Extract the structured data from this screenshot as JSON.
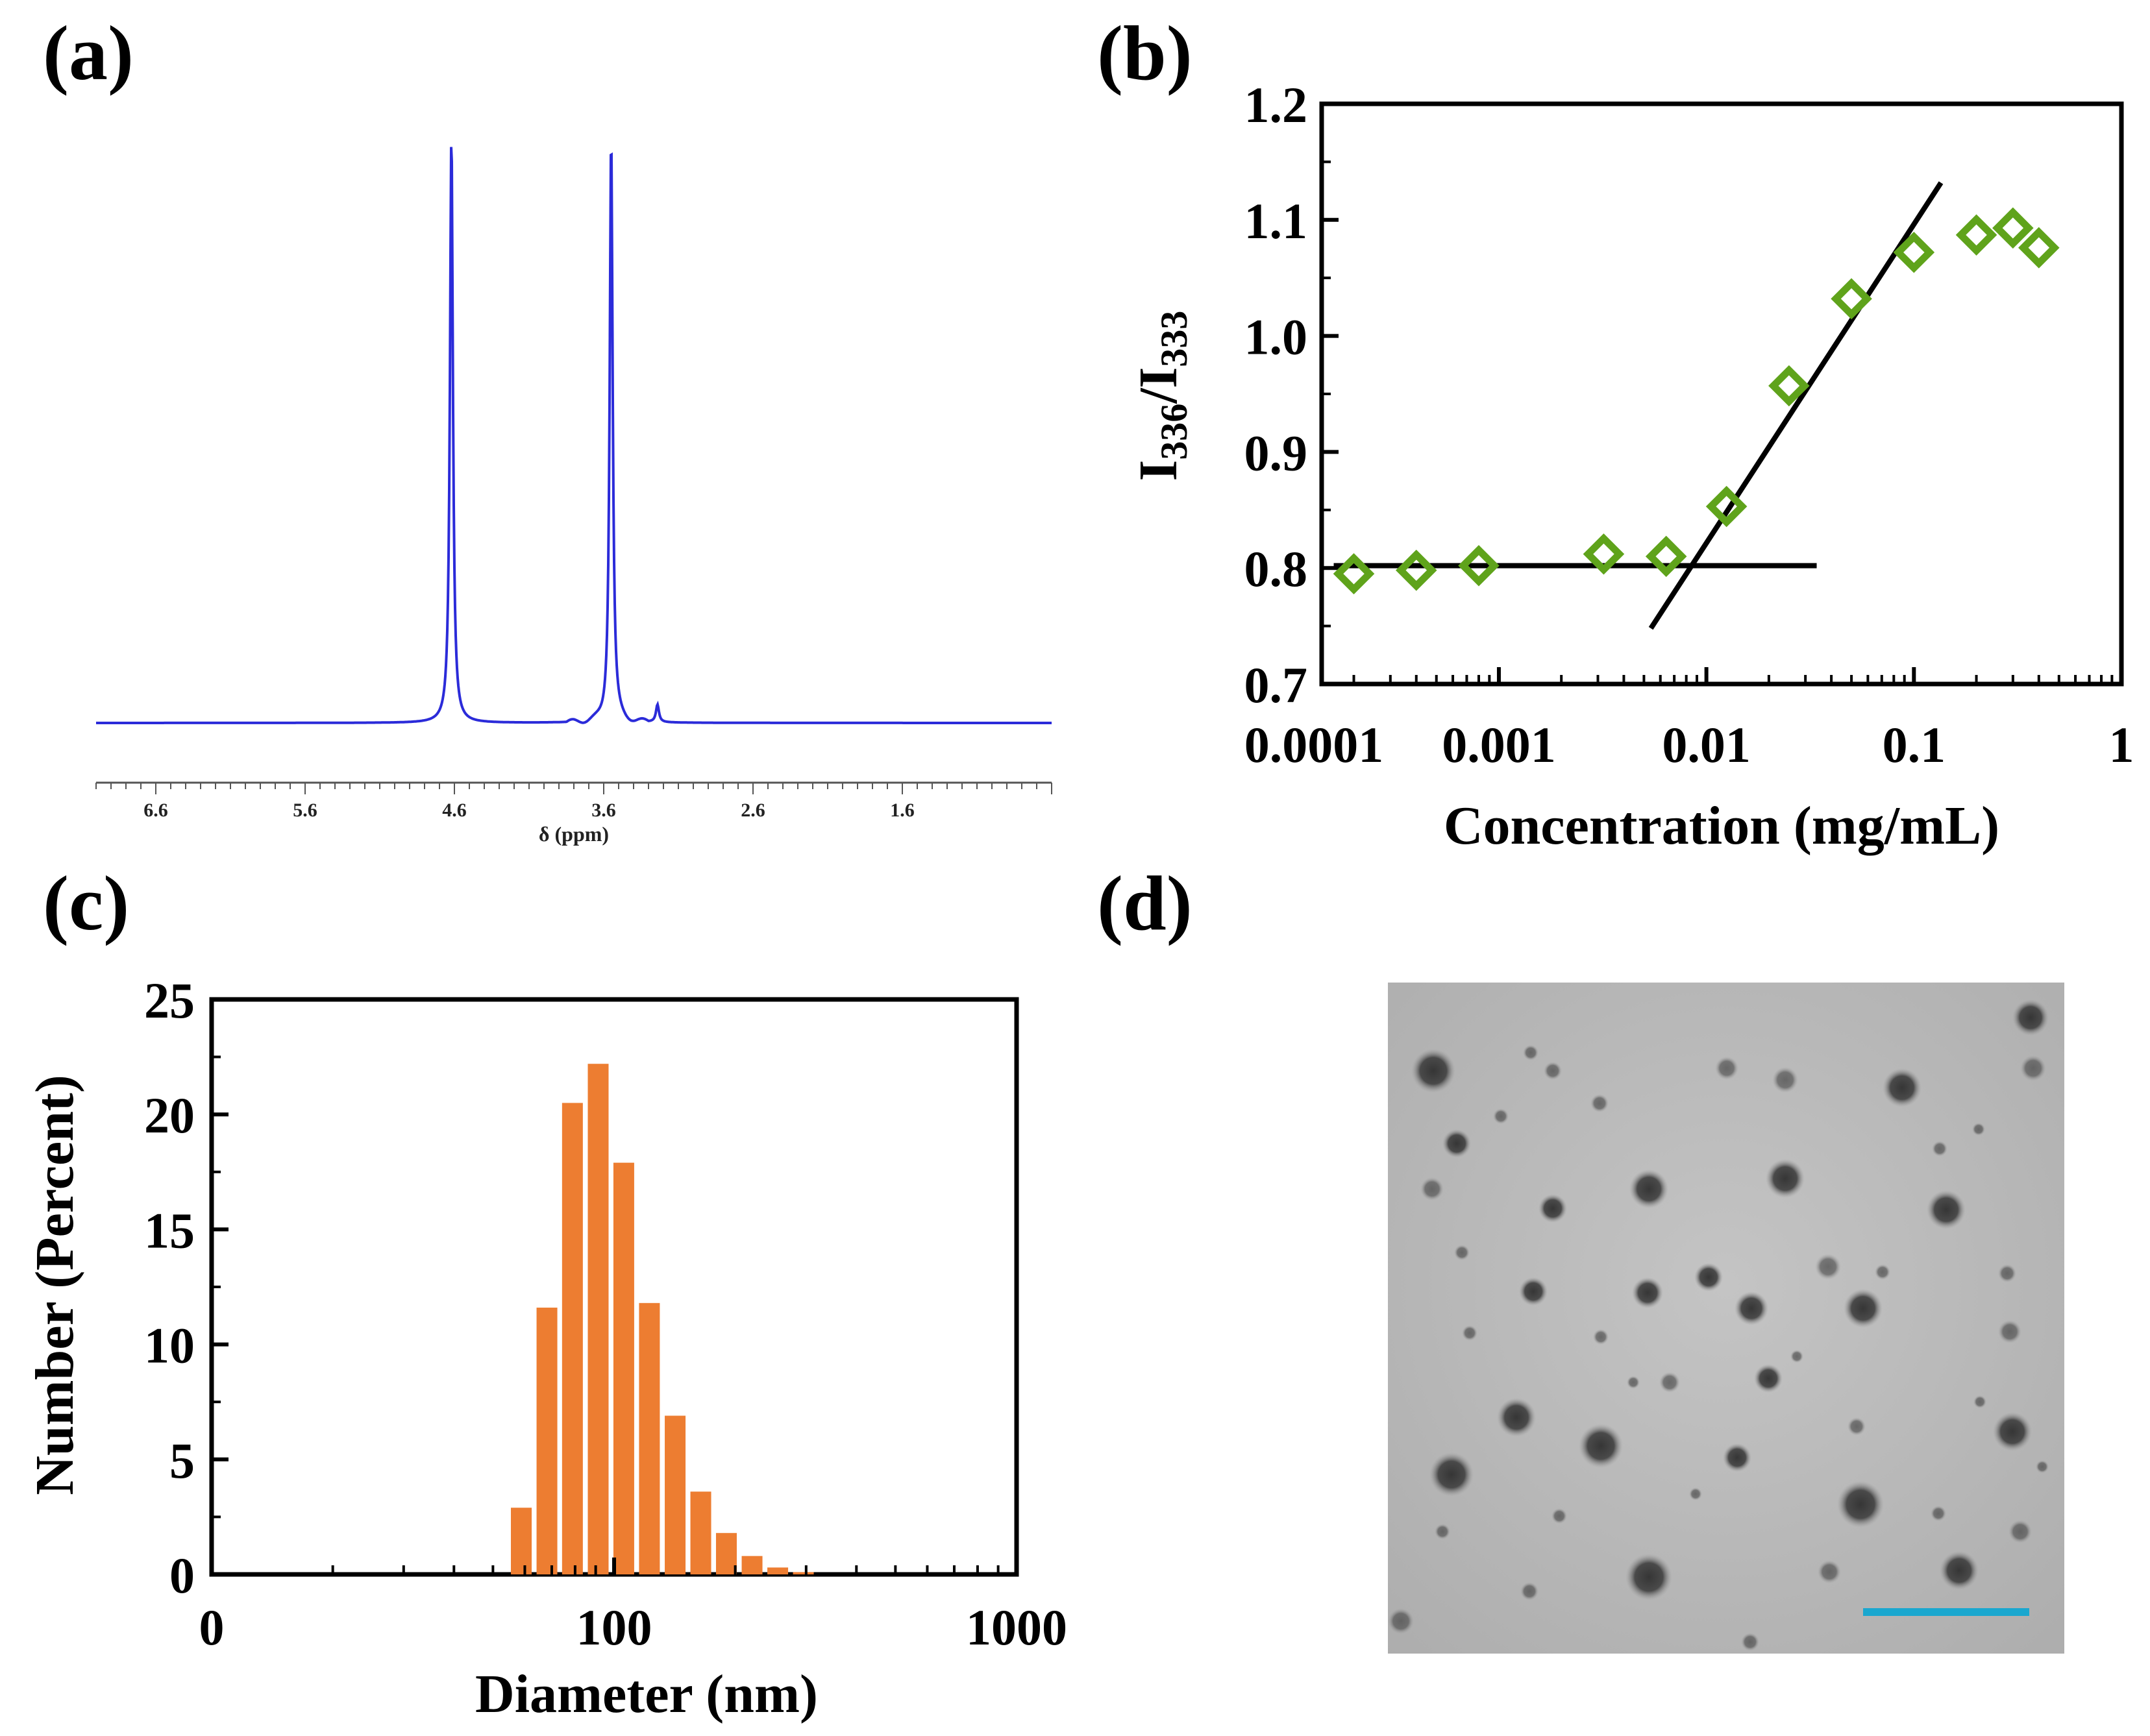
{
  "labels": {
    "a": "(a)",
    "b": "(b)",
    "c": "(c)",
    "d": "(d)"
  },
  "colors": {
    "nmr": "#2b2bd9",
    "diamond": "#5fa31b",
    "bar": "#ed7d31",
    "scale_bar": "#1aa7cf"
  },
  "chart_data": [
    {
      "panel": "a",
      "type": "line",
      "title": "",
      "xlabel": "δ (ppm)",
      "x_ticks": [
        "6.6",
        "5.6",
        "4.6",
        "3.6",
        "2.6",
        "1.6"
      ],
      "xlim": [
        7.0,
        0.6
      ],
      "peaks": [
        {
          "ppm": 4.62,
          "relative_height": 1.0
        },
        {
          "ppm": 3.55,
          "relative_height": 1.0
        },
        {
          "ppm": 3.24,
          "relative_height": 0.03
        }
      ]
    },
    {
      "panel": "b",
      "type": "scatter",
      "xlabel": "Concentration (mg/mL)",
      "ylabel_main": "I",
      "ylabel_sub1": "336",
      "ylabel_sep": "/I",
      "ylabel_sub2": "333",
      "xscale": "log",
      "xlim": [
        0.00014,
        1.0
      ],
      "ylim": [
        0.7,
        1.2
      ],
      "x_ticks": [
        "0.0001",
        "0.001",
        "0.01",
        "0.1",
        "1"
      ],
      "y_ticks": [
        "0.7",
        "0.8",
        "0.9",
        "1.0",
        "1.1",
        "1.2"
      ],
      "x": [
        0.0002,
        0.0004,
        0.0008,
        0.0032,
        0.0064,
        0.0125,
        0.025,
        0.05,
        0.1,
        0.2,
        0.3,
        0.4
      ],
      "y": [
        0.795,
        0.798,
        0.802,
        0.812,
        0.81,
        0.853,
        0.957,
        1.032,
        1.072,
        1.087,
        1.093,
        1.076
      ],
      "fit_lines": [
        {
          "x": [
            0.00016,
            0.034
          ],
          "y": [
            0.802,
            0.802
          ]
        },
        {
          "x": [
            0.0054,
            0.135
          ],
          "y": [
            0.748,
            1.132
          ]
        }
      ]
    },
    {
      "panel": "c",
      "type": "bar",
      "xlabel": "Diameter (nm)",
      "ylabel": "Number (Percent)",
      "xscale": "log",
      "xlim": [
        10,
        1000
      ],
      "ylim": [
        0,
        25
      ],
      "x_ticks": [
        "0",
        "100",
        "1000"
      ],
      "y_ticks": [
        "0",
        "5",
        "10",
        "15",
        "20",
        "25"
      ],
      "categories": [
        58.8,
        68.1,
        78.8,
        91.3,
        105.7,
        122.4,
        141.8,
        164.2,
        190.1,
        220.2,
        255.0,
        295.3
      ],
      "values": [
        2.9,
        11.6,
        20.5,
        22.2,
        17.9,
        11.8,
        6.9,
        3.6,
        1.8,
        0.8,
        0.3,
        0.1
      ]
    }
  ],
  "tem_image": {
    "caption": "",
    "scale_bar_label": ""
  }
}
